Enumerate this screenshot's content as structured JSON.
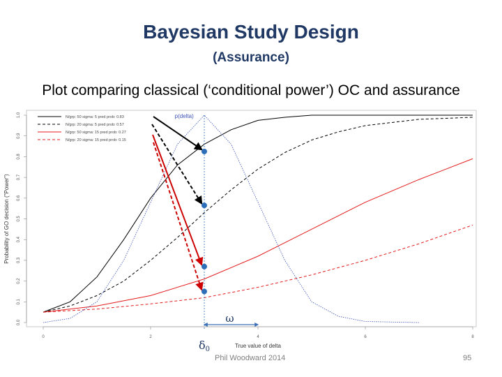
{
  "slide": {
    "title": "Bayesian Study Design",
    "subtitle_paren": "(Assurance)",
    "caption": "Plot comparing classical (‘conditional power’) OC and assurance",
    "author": "Phil Woodward 2014",
    "page": "95"
  },
  "chart_data": {
    "type": "line",
    "xlabel": "True value of delta",
    "ylabel": "Probability of GO decision (\"Power\")",
    "xlim": [
      0,
      8
    ],
    "ylim": [
      0,
      1
    ],
    "xticks": [
      "0",
      "2",
      "4",
      "6",
      "8"
    ],
    "yticks": [
      "0.0",
      "0.1",
      "0.2",
      "0.3",
      "0.4",
      "0.5",
      "0.6",
      "0.7",
      "0.8",
      "0.9",
      "1.0"
    ],
    "series": [
      {
        "name": "N/grp: 50   sigma: 5   pred prob: 0.83",
        "color": "#000000",
        "dash": "solid",
        "x": [
          0,
          0.5,
          1,
          1.5,
          2,
          2.5,
          3,
          3.5,
          4,
          4.5,
          5,
          6,
          8
        ],
        "y": [
          0.05,
          0.1,
          0.22,
          0.4,
          0.6,
          0.76,
          0.86,
          0.93,
          0.975,
          0.99,
          1.0,
          1.0,
          1.0
        ]
      },
      {
        "name": "N/grp: 20   sigma: 5   pred prob: 0.57",
        "color": "#000000",
        "dash": "dashed",
        "x": [
          0,
          0.5,
          1,
          1.5,
          2,
          2.5,
          3,
          3.5,
          4,
          4.5,
          5,
          5.5,
          6,
          7,
          8
        ],
        "y": [
          0.05,
          0.08,
          0.13,
          0.2,
          0.3,
          0.41,
          0.53,
          0.64,
          0.74,
          0.82,
          0.88,
          0.92,
          0.95,
          0.98,
          0.99
        ]
      },
      {
        "name": "N/grp: 50   sigma: 15   pred prob: 0.27",
        "color": "#e41a1c",
        "dash": "solid",
        "x": [
          0,
          1,
          2,
          3,
          4,
          5,
          6,
          7,
          8
        ],
        "y": [
          0.05,
          0.08,
          0.13,
          0.21,
          0.32,
          0.45,
          0.58,
          0.69,
          0.79
        ]
      },
      {
        "name": "N/grp: 20   sigma: 15   pred prob: 0.15",
        "color": "#e41a1c",
        "dash": "dashed",
        "x": [
          0,
          1,
          2,
          3,
          4,
          5,
          6,
          7,
          8
        ],
        "y": [
          0.05,
          0.065,
          0.09,
          0.12,
          0.17,
          0.23,
          0.3,
          0.38,
          0.47
        ]
      },
      {
        "name": "p(delta)",
        "color": "#3a4fb8",
        "dash": "dotted",
        "x": [
          0,
          0.5,
          1,
          1.5,
          2,
          2.5,
          3,
          3.5,
          4,
          4.5,
          5,
          5.5,
          6,
          7
        ],
        "y": [
          0.0,
          0.02,
          0.1,
          0.3,
          0.58,
          0.86,
          1.0,
          0.86,
          0.58,
          0.3,
          0.1,
          0.03,
          0.005,
          0.0
        ]
      }
    ],
    "points": [
      {
        "x": 3,
        "y": 0.825
      },
      {
        "x": 3,
        "y": 0.565
      },
      {
        "x": 3,
        "y": 0.27
      },
      {
        "x": 3,
        "y": 0.15
      }
    ],
    "delta0_x": 3,
    "omega_range": [
      3,
      4
    ],
    "annotations": {
      "pdelta": "p(delta)",
      "omega": "ω",
      "delta0_symbol": "δ",
      "delta0_sub": "0"
    }
  }
}
